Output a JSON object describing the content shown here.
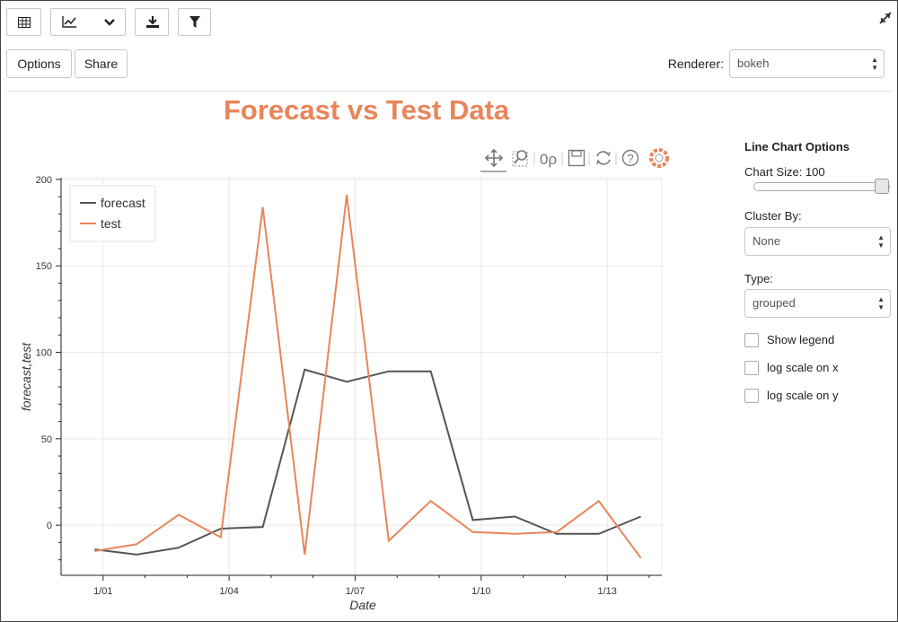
{
  "toolbar": {
    "icons": [
      "table-icon",
      "line-chart-icon",
      "chevron-down-icon",
      "download-icon",
      "filter-icon",
      "collapse-icon"
    ]
  },
  "actions": {
    "options_label": "Options",
    "share_label": "Share"
  },
  "renderer": {
    "label": "Renderer:",
    "value": "bokeh"
  },
  "chart_toolbar": {
    "icons": [
      "pan-icon",
      "box-zoom-icon",
      "wheel-zoom-icon",
      "save-icon",
      "reset-icon",
      "help-icon",
      "bokeh-logo-icon"
    ],
    "wheel_zoom_text": "0ρ"
  },
  "panel": {
    "title": "Line Chart Options",
    "chart_size_label": "Chart Size: 100",
    "chart_size_value": 100,
    "cluster_by_label": "Cluster By:",
    "cluster_by_value": "None",
    "type_label": "Type:",
    "type_value": "grouped",
    "checkboxes": [
      {
        "label": "Show legend",
        "checked": false
      },
      {
        "label": "log scale on x",
        "checked": false
      },
      {
        "label": "log scale on y",
        "checked": false
      }
    ]
  },
  "colors": {
    "forecast": "#555555",
    "test": "#e8855a",
    "title": "#e8855a"
  },
  "chart_data": {
    "type": "line",
    "title": "Forecast vs Test Data",
    "xlabel": "Date",
    "ylabel": "forecast,test",
    "x": [
      0.8,
      1.8,
      2.8,
      3.8,
      4.8,
      5.8,
      6.8,
      7.8,
      8.8,
      9.8,
      10.8,
      11.8,
      12.8,
      13.8
    ],
    "x_ticks": [
      {
        "value": 1,
        "label": "1/01"
      },
      {
        "value": 4,
        "label": "1/04"
      },
      {
        "value": 7,
        "label": "1/07"
      },
      {
        "value": 10,
        "label": "1/10"
      },
      {
        "value": 13,
        "label": "1/13"
      }
    ],
    "y_ticks": [
      0,
      50,
      100,
      150,
      200
    ],
    "xlim": [
      0,
      14.3
    ],
    "ylim": [
      -29,
      201
    ],
    "series": [
      {
        "name": "forecast",
        "values": [
          -14,
          -17,
          -13,
          -2,
          -1,
          90,
          83,
          89,
          89,
          3,
          5,
          -5,
          -5,
          5
        ]
      },
      {
        "name": "test",
        "values": [
          -15,
          -11,
          6,
          -7,
          184,
          -17,
          191,
          -9,
          14,
          -4,
          -5,
          -4,
          14,
          -19
        ]
      }
    ],
    "legend": "top-left",
    "grid": true
  }
}
